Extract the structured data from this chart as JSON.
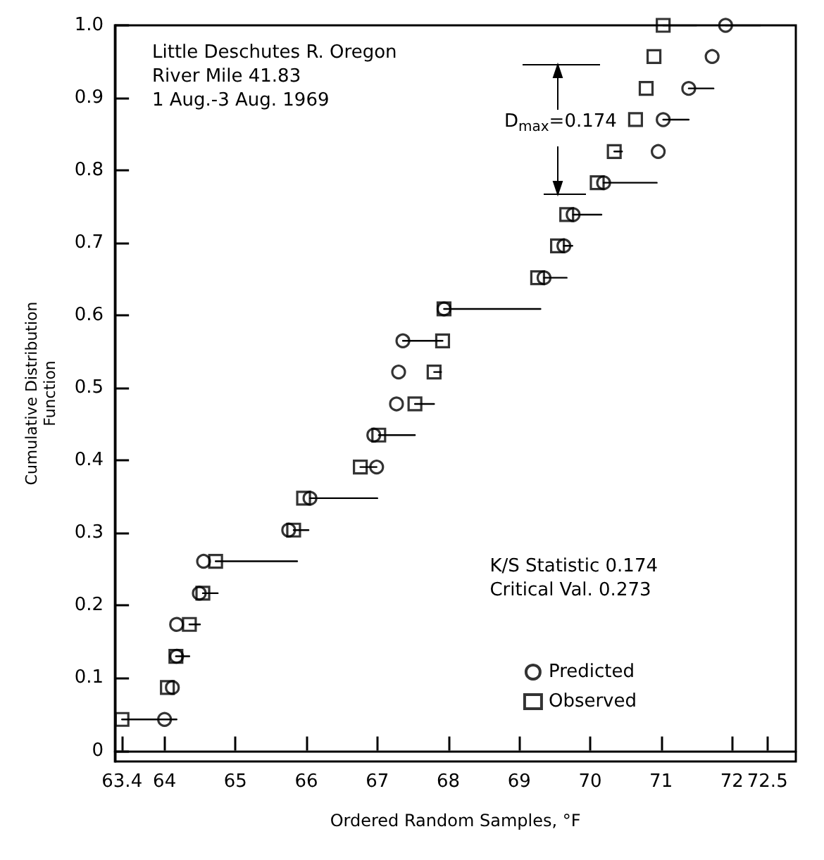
{
  "chart_data": {
    "type": "scatter",
    "title": "Little Deschutes R. Oregon",
    "subtitle": "River Mile 41.83\n1 Aug.-3 Aug. 1969",
    "xlabel": "Ordered Random Samples, °F",
    "ylabel": "Cumulative Distribution\nFunction",
    "annotations": [
      "D$_{max}$=0.174",
      "K/S Statistic 0.174",
      "Critical Val. 0.273"
    ],
    "series": [
      {
        "name": "Predicted",
        "marker": "circle",
        "color": "#000000",
        "x": [
          64.0,
          64.11,
          64.17,
          64.17,
          64.49,
          64.55,
          65.75,
          66.05,
          66.99,
          66.95,
          67.27,
          67.3,
          67.36,
          67.94,
          69.35,
          69.63,
          69.76,
          70.19,
          70.96,
          71.03,
          71.39,
          71.72,
          71.91
        ],
        "values": [
          0.043,
          0.087,
          0.13,
          0.174,
          0.217,
          0.261,
          0.304,
          0.348,
          0.391,
          0.435,
          0.478,
          0.522,
          0.565,
          0.609,
          0.652,
          0.696,
          0.739,
          0.783,
          0.826,
          0.87,
          0.913,
          0.957,
          1.0
        ]
      },
      {
        "name": "Observed",
        "marker": "square",
        "color": "#000000",
        "x": [
          63.4,
          64.04,
          64.16,
          64.35,
          64.54,
          64.72,
          65.82,
          65.96,
          66.76,
          67.02,
          67.53,
          67.8,
          67.92,
          67.94,
          69.26,
          69.54,
          69.67,
          70.1,
          70.34,
          70.64,
          70.79,
          70.9,
          71.03
        ],
        "values": [
          0.043,
          0.087,
          0.13,
          0.174,
          0.217,
          0.261,
          0.304,
          0.348,
          0.391,
          0.435,
          0.478,
          0.522,
          0.565,
          0.609,
          0.652,
          0.696,
          0.739,
          0.783,
          0.826,
          0.87,
          0.913,
          0.957,
          1.0
        ]
      },
      {
        "type": "line",
        "marker": "none",
        "color": "#000000",
        "x": [
          63.4,
          64.17,
          null,
          64.16,
          64.35,
          null,
          64.35,
          64.5,
          null,
          64.54,
          64.75,
          null,
          64.72,
          65.87,
          null,
          65.82,
          66.03,
          null,
          66.05,
          67.0,
          null,
          66.76,
          66.99,
          null,
          67.02,
          67.53,
          null,
          67.53,
          67.8,
          null,
          67.8,
          67.9,
          null,
          67.36,
          67.92,
          null,
          67.94,
          69.3,
          null,
          69.35,
          69.67,
          null,
          69.63,
          69.75,
          null,
          69.76,
          70.16,
          null,
          70.19,
          70.94,
          null,
          70.34,
          70.45,
          null,
          71.03,
          71.39,
          null,
          71.39,
          71.74,
          null,
          71.03,
          71.5,
          null,
          71.91,
          72.4
        ],
        "values": [
          0.043,
          0.043,
          null,
          0.13,
          0.13,
          null,
          0.174,
          0.174,
          null,
          0.217,
          0.217,
          null,
          0.261,
          0.261,
          null,
          0.304,
          0.304,
          null,
          0.348,
          0.348,
          null,
          0.391,
          0.391,
          null,
          0.435,
          0.435,
          null,
          0.478,
          0.478,
          null,
          0.522,
          0.522,
          null,
          0.565,
          0.565,
          null,
          0.609,
          0.609,
          null,
          0.652,
          0.652,
          null,
          0.696,
          0.696,
          null,
          0.739,
          0.739,
          null,
          0.783,
          0.783,
          null,
          0.826,
          0.826,
          null,
          0.87,
          0.87,
          null,
          0.913,
          0.913,
          null,
          1.0,
          1.0,
          null,
          1.0,
          1.0
        ]
      }
    ],
    "xlim": [
      63.3,
      72.9
    ],
    "xticks": [
      63.4,
      64,
      65,
      66,
      67,
      68,
      69,
      70,
      71,
      72,
      72.5
    ],
    "ylim": [
      -0.015,
      1.0
    ],
    "yticks": [
      0,
      0.1,
      0.2,
      0.3,
      0.4,
      0.5,
      0.6,
      0.7,
      0.8,
      0.9,
      {
        "value": 1.0,
        "label": "1.0"
      }
    ],
    "legend": "bottom right"
  }
}
